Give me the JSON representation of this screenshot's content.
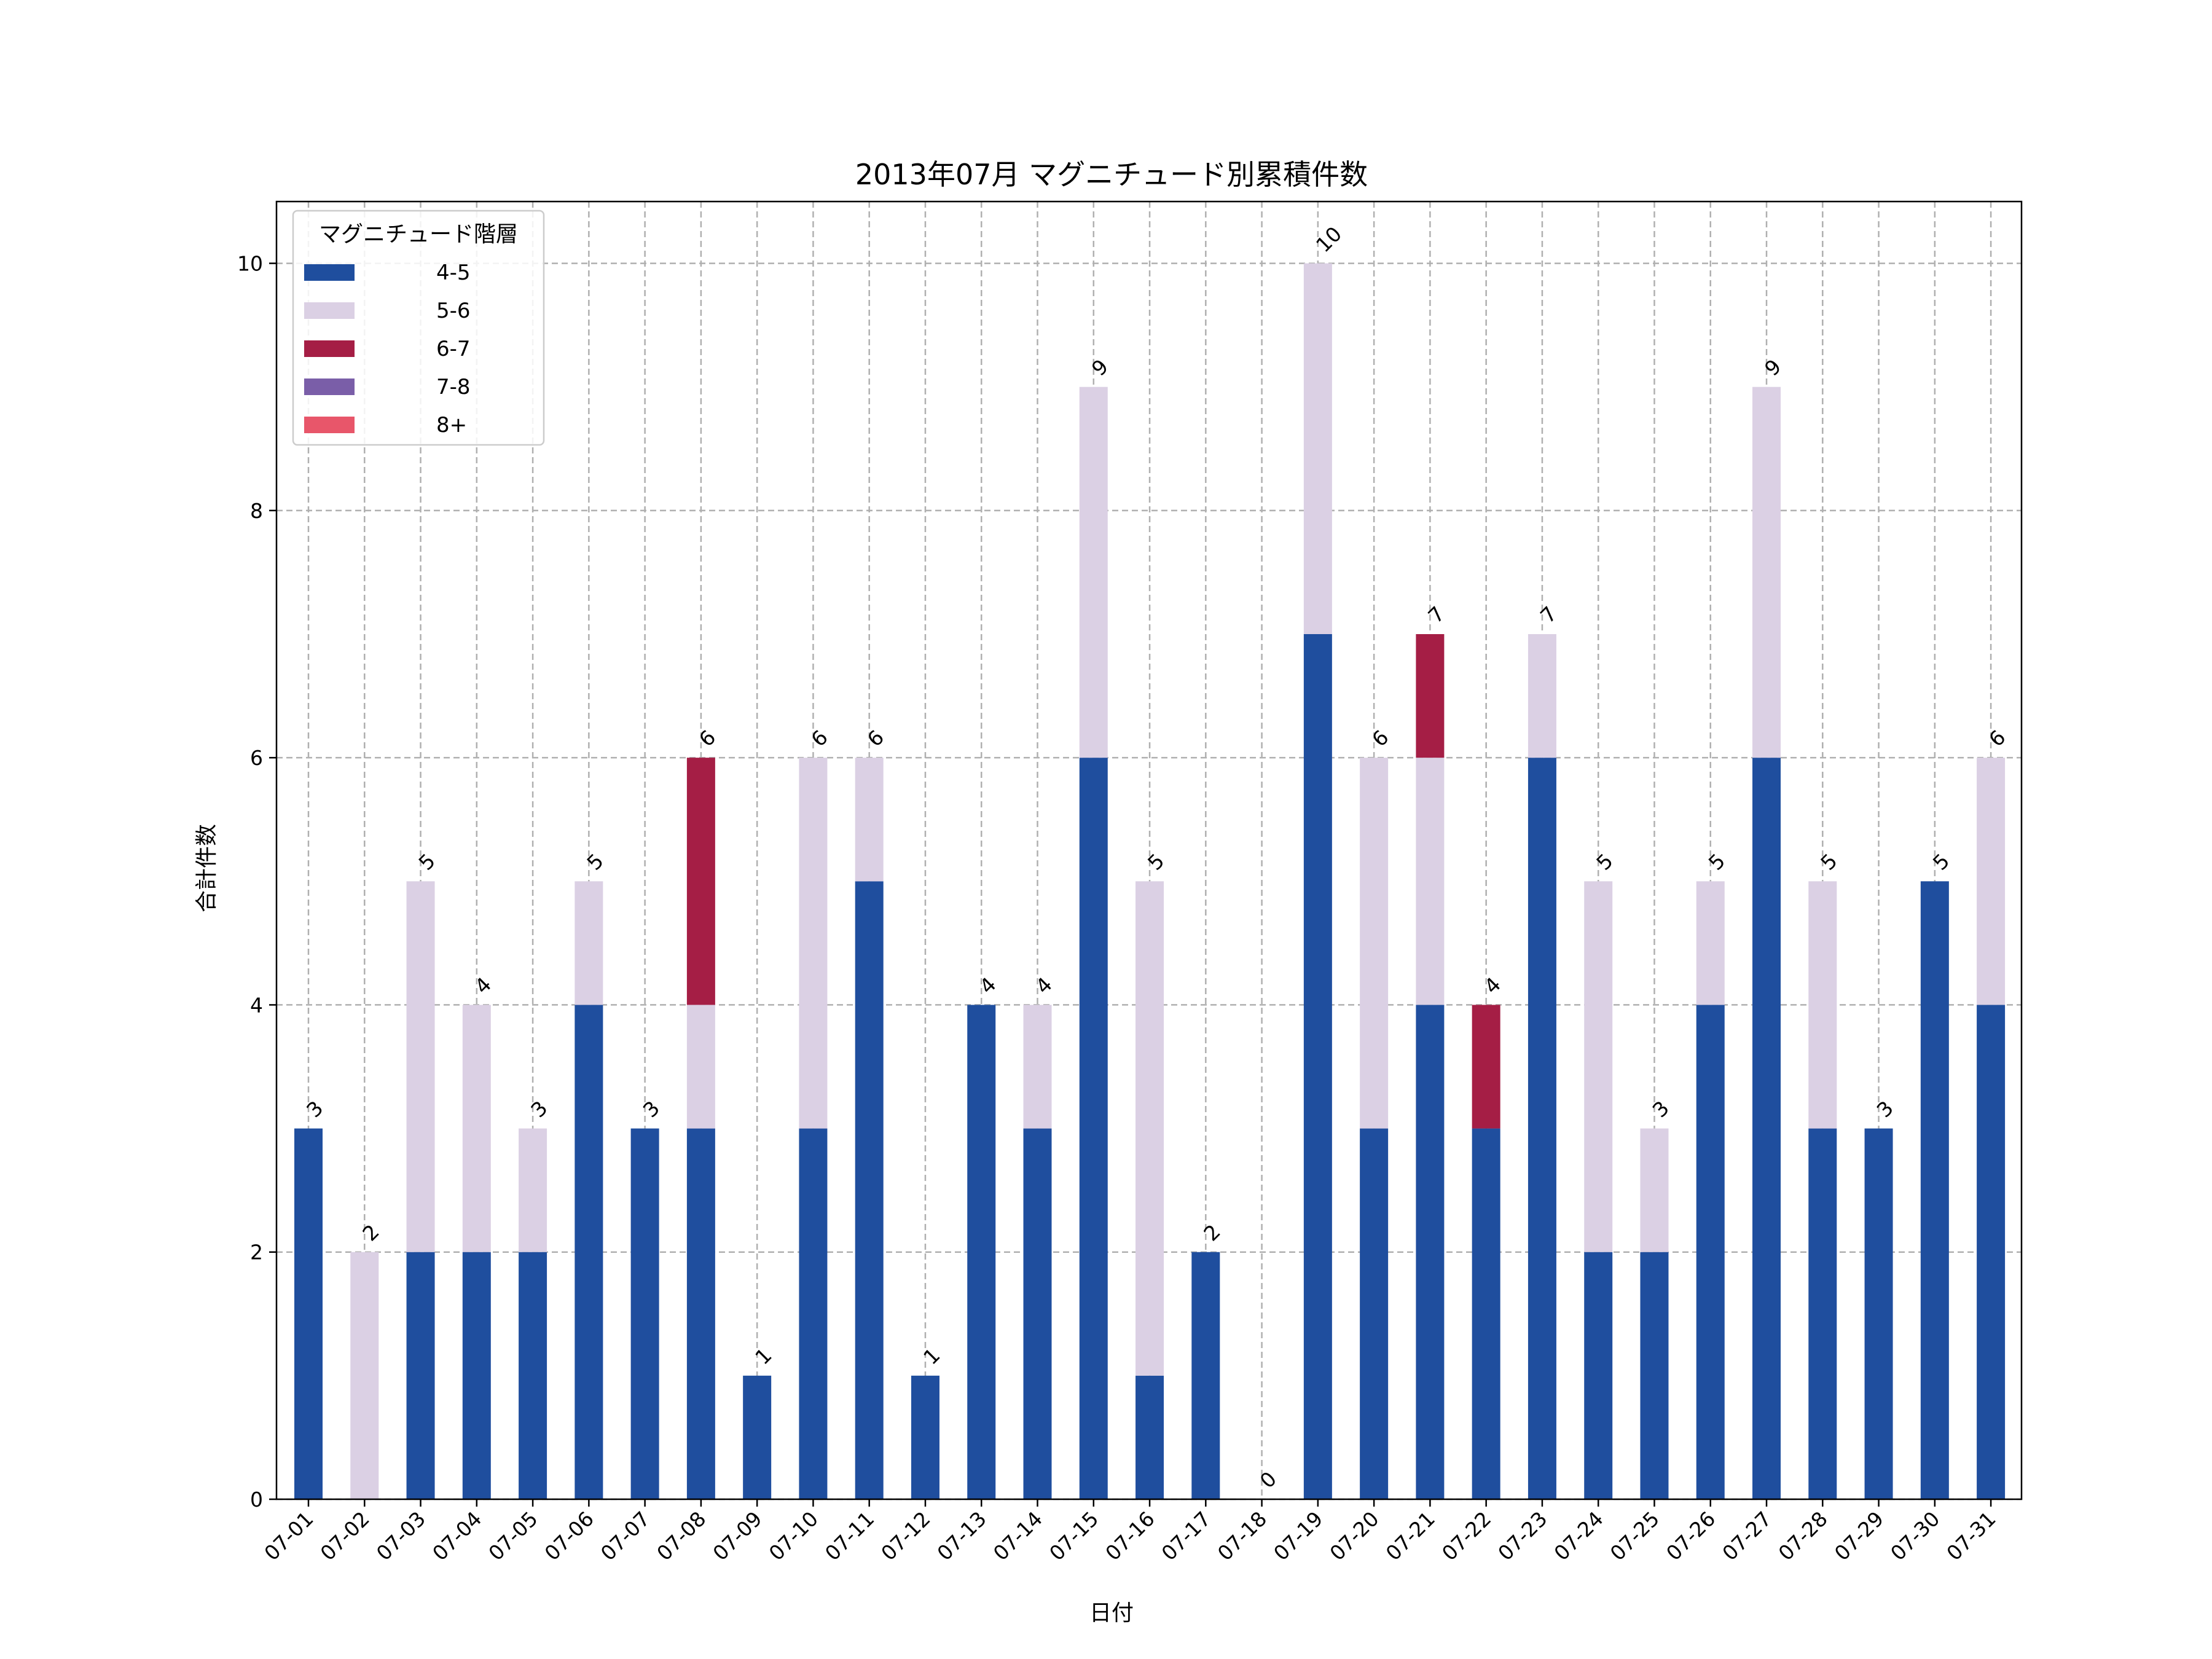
{
  "chart_data": {
    "type": "bar",
    "stacked": true,
    "title": "2013年07月 マグニチュード別累積件数",
    "xlabel": "日付",
    "ylabel": "合計件数",
    "ylim": [
      0,
      10.5
    ],
    "yticks": [
      0,
      2,
      4,
      6,
      8,
      10
    ],
    "grid": true,
    "legend": {
      "title": "マグニチュード階層",
      "placement": "top-left"
    },
    "categories": [
      "07-01",
      "07-02",
      "07-03",
      "07-04",
      "07-05",
      "07-06",
      "07-07",
      "07-08",
      "07-09",
      "07-10",
      "07-11",
      "07-12",
      "07-13",
      "07-14",
      "07-15",
      "07-16",
      "07-17",
      "07-18",
      "07-19",
      "07-20",
      "07-21",
      "07-22",
      "07-23",
      "07-24",
      "07-25",
      "07-26",
      "07-27",
      "07-28",
      "07-29",
      "07-30",
      "07-31"
    ],
    "series": [
      {
        "name": "4-5",
        "color": "#1f4e9e",
        "values": [
          3,
          0,
          2,
          2,
          2,
          4,
          3,
          3,
          1,
          3,
          5,
          1,
          4,
          3,
          6,
          1,
          2,
          0,
          7,
          3,
          4,
          3,
          6,
          2,
          2,
          4,
          6,
          3,
          3,
          5,
          4
        ]
      },
      {
        "name": "5-6",
        "color": "#dbd0e4",
        "values": [
          0,
          2,
          3,
          2,
          1,
          1,
          0,
          1,
          0,
          3,
          1,
          0,
          0,
          1,
          3,
          4,
          0,
          0,
          3,
          3,
          2,
          0,
          1,
          3,
          1,
          1,
          3,
          2,
          0,
          0,
          2
        ]
      },
      {
        "name": "6-7",
        "color": "#a51e45",
        "values": [
          0,
          0,
          0,
          0,
          0,
          0,
          0,
          2,
          0,
          0,
          0,
          0,
          0,
          0,
          0,
          0,
          0,
          0,
          0,
          0,
          1,
          1,
          0,
          0,
          0,
          0,
          0,
          0,
          0,
          0,
          0
        ]
      },
      {
        "name": "7-8",
        "color": "#7a5ea8",
        "values": [
          0,
          0,
          0,
          0,
          0,
          0,
          0,
          0,
          0,
          0,
          0,
          0,
          0,
          0,
          0,
          0,
          0,
          0,
          0,
          0,
          0,
          0,
          0,
          0,
          0,
          0,
          0,
          0,
          0,
          0,
          0
        ]
      },
      {
        "name": "8+",
        "color": "#e8566a",
        "values": [
          0,
          0,
          0,
          0,
          0,
          0,
          0,
          0,
          0,
          0,
          0,
          0,
          0,
          0,
          0,
          0,
          0,
          0,
          0,
          0,
          0,
          0,
          0,
          0,
          0,
          0,
          0,
          0,
          0,
          0,
          0
        ]
      }
    ],
    "totals": [
      3,
      2,
      5,
      4,
      3,
      5,
      3,
      6,
      1,
      6,
      6,
      1,
      4,
      4,
      9,
      5,
      2,
      0,
      10,
      6,
      7,
      4,
      7,
      5,
      3,
      5,
      9,
      5,
      3,
      5,
      6
    ]
  }
}
